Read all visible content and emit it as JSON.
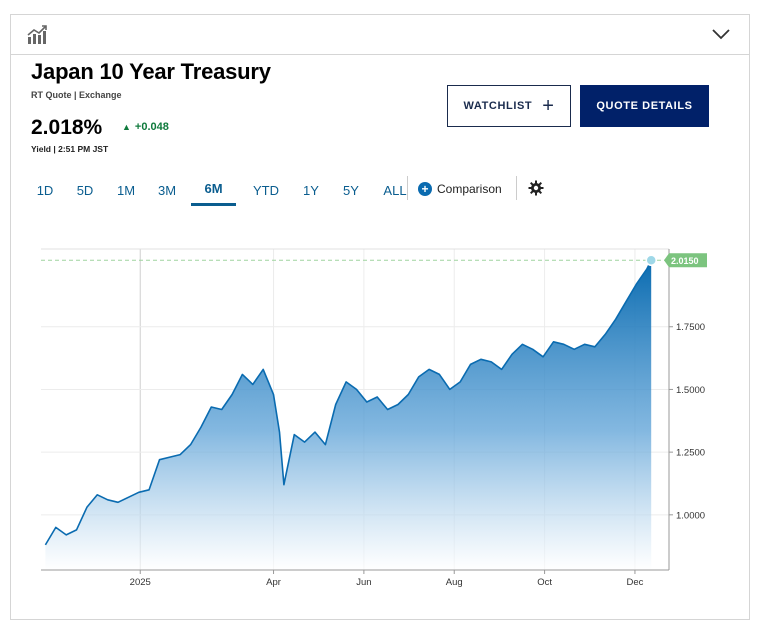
{
  "header": {
    "title": "Japan 10 Year Treasury",
    "subtitle": "RT Quote | Exchange",
    "price": "2.018%",
    "change": "+0.048",
    "yield_time": "Yield | 2:51 PM JST"
  },
  "buttons": {
    "watchlist": "WATCHLIST",
    "quote_details": "QUOTE DETAILS"
  },
  "tabs": [
    "1D",
    "5D",
    "1M",
    "3M",
    "6M",
    "YTD",
    "1Y",
    "5Y",
    "ALL"
  ],
  "active_tab": "6M",
  "comparison_label": "Comparison",
  "icons": {
    "top_left": "chart-icon",
    "top_right": "chevron-down-icon",
    "settings": "gear-icon",
    "comparison": "plus-circle-icon"
  },
  "colors": {
    "line": "#0a6bb0",
    "positive": "#0f7a3c",
    "last_badge": "#7cc47f",
    "navy": "#012169"
  },
  "chart_data": {
    "type": "area",
    "x_ticks": [
      "2025",
      "Apr",
      "Jun",
      "Aug",
      "Oct",
      "Dec"
    ],
    "y_ticks": [
      "1.0000",
      "1.2500",
      "1.5000",
      "1.7500"
    ],
    "ylim": [
      0.78,
      2.06
    ],
    "last_value_label": "2.0150",
    "last_value": 2.015,
    "series": [
      {
        "x": [
          "2024-10-29",
          "2024-11-05",
          "2024-11-12",
          "2024-11-19",
          "2024-11-26",
          "2024-12-03",
          "2024-12-10",
          "2024-12-17",
          "2024-12-24",
          "2024-12-31",
          "2025-01-07",
          "2025-01-14",
          "2025-01-21",
          "2025-01-28",
          "2025-02-04",
          "2025-02-11",
          "2025-02-18",
          "2025-02-25",
          "2025-03-04",
          "2025-03-11",
          "2025-03-18",
          "2025-03-25",
          "2025-04-01",
          "2025-04-05",
          "2025-04-08",
          "2025-04-15",
          "2025-04-22",
          "2025-04-29",
          "2025-05-06",
          "2025-05-13",
          "2025-05-20",
          "2025-05-27",
          "2025-06-03",
          "2025-06-10",
          "2025-06-17",
          "2025-06-24",
          "2025-07-01",
          "2025-07-08",
          "2025-07-15",
          "2025-07-22",
          "2025-07-29",
          "2025-08-05",
          "2025-08-12",
          "2025-08-19",
          "2025-08-26",
          "2025-09-02",
          "2025-09-09",
          "2025-09-16",
          "2025-09-23",
          "2025-09-30",
          "2025-10-07",
          "2025-10-14",
          "2025-10-21",
          "2025-10-28",
          "2025-11-04",
          "2025-11-11",
          "2025-11-18",
          "2025-11-25",
          "2025-12-02",
          "2025-12-09",
          "2025-12-12"
        ],
        "y": [
          0.88,
          0.95,
          0.92,
          0.94,
          1.03,
          1.08,
          1.06,
          1.05,
          1.07,
          1.09,
          1.1,
          1.22,
          1.23,
          1.24,
          1.28,
          1.35,
          1.43,
          1.42,
          1.48,
          1.56,
          1.52,
          1.58,
          1.48,
          1.33,
          1.12,
          1.32,
          1.29,
          1.33,
          1.28,
          1.44,
          1.53,
          1.5,
          1.45,
          1.47,
          1.42,
          1.44,
          1.48,
          1.55,
          1.58,
          1.56,
          1.5,
          1.53,
          1.6,
          1.62,
          1.61,
          1.58,
          1.64,
          1.68,
          1.66,
          1.63,
          1.69,
          1.68,
          1.66,
          1.68,
          1.67,
          1.72,
          1.78,
          1.85,
          1.92,
          1.98,
          2.015
        ]
      }
    ]
  }
}
